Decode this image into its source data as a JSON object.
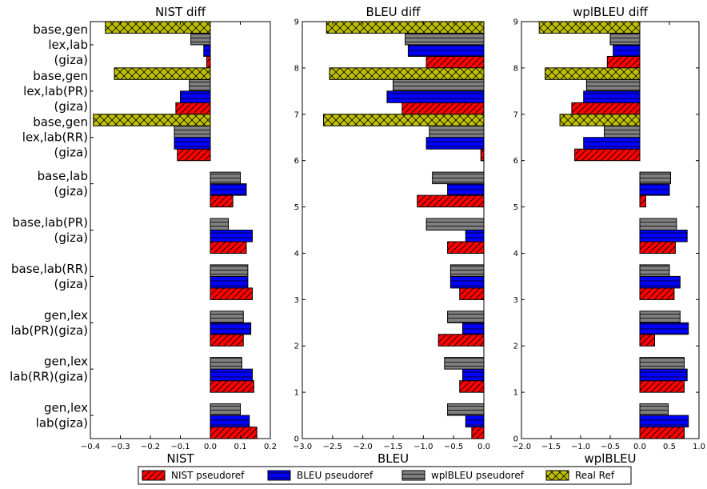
{
  "chart_data": {
    "type": "bar",
    "orientation": "horizontal",
    "row_labels": [
      [
        "gen,lex",
        "lab(giza)"
      ],
      [
        "gen,lex",
        "lab(RR)(giza)"
      ],
      [
        "gen,lex",
        "lab(PR)(giza)"
      ],
      [
        "base,lab(RR)",
        "(giza)"
      ],
      [
        "base,lab(PR)",
        "(giza)"
      ],
      [
        "base,lab",
        "(giza)"
      ],
      [
        "base,gen",
        "lex,lab(RR)",
        "(giza)"
      ],
      [
        "base,gen",
        "lex,lab(PR)",
        "(giza)"
      ],
      [
        "base,gen",
        "lex,lab",
        "(giza)"
      ]
    ],
    "legend": [
      {
        "label": "NIST pseudoref",
        "color": "#ff0000",
        "hatch": "diag"
      },
      {
        "label": "BLEU pseudoref",
        "color": "#0000ff",
        "hatch": "horiz"
      },
      {
        "label": "wplBLEU pseudoref",
        "color": "#808080",
        "hatch": "horiz"
      },
      {
        "label": "Real Ref",
        "color": "#bfbf00",
        "hatch": "cross"
      }
    ],
    "legend_position": "bottom",
    "panels": [
      {
        "title": "NIST diff",
        "xlabel": "NIST",
        "xlim": [
          -0.4,
          0.2
        ],
        "xticks": [
          "−0.4",
          "−0.3",
          "−0.2",
          "−0.1",
          "0.0",
          "0.1",
          "0.2"
        ],
        "ylim": [
          0,
          9
        ],
        "yticks": [],
        "series": [
          {
            "name": "NIST pseudoref",
            "values": [
              0.155,
              0.145,
              0.11,
              0.14,
              0.12,
              0.075,
              -0.11,
              -0.115,
              -0.012
            ]
          },
          {
            "name": "BLEU pseudoref",
            "values": [
              0.13,
              0.14,
              0.135,
              0.125,
              0.14,
              0.12,
              -0.12,
              -0.1,
              -0.022
            ]
          },
          {
            "name": "wplBLEU pseudoref",
            "values": [
              0.1,
              0.105,
              0.11,
              0.125,
              0.06,
              0.1,
              -0.12,
              -0.07,
              -0.065
            ]
          },
          {
            "name": "Real Ref",
            "values": [
              null,
              null,
              null,
              null,
              null,
              null,
              -0.39,
              -0.32,
              -0.35
            ]
          }
        ]
      },
      {
        "title": "BLEU diff",
        "xlabel": "BLEU",
        "xlim": [
          -3.0,
          0.0
        ],
        "xticks": [
          "−3.0",
          "−2.5",
          "−2.0",
          "−1.5",
          "−1.0",
          "−0.5",
          "0.0"
        ],
        "ylim": [
          0,
          9
        ],
        "yticks": [
          "0",
          "1",
          "2",
          "3",
          "4",
          "5",
          "6",
          "7",
          "8",
          "9"
        ],
        "series": [
          {
            "name": "NIST pseudoref",
            "values": [
              -0.2,
              -0.4,
              -0.75,
              -0.4,
              -0.6,
              -1.1,
              -0.05,
              -1.35,
              -0.95
            ]
          },
          {
            "name": "BLEU pseudoref",
            "values": [
              -0.3,
              -0.35,
              -0.35,
              -0.55,
              -0.3,
              -0.6,
              -0.95,
              -1.6,
              -1.25
            ]
          },
          {
            "name": "wplBLEU pseudoref",
            "values": [
              -0.6,
              -0.65,
              -0.6,
              -0.55,
              -0.95,
              -0.85,
              -0.9,
              -1.5,
              -1.3
            ]
          },
          {
            "name": "Real Ref",
            "values": [
              null,
              null,
              null,
              null,
              null,
              null,
              -2.65,
              -2.55,
              -2.6
            ]
          }
        ]
      },
      {
        "title": "wplBLEU diff",
        "xlabel": "wplBLEU",
        "xlim": [
          -2.0,
          1.0
        ],
        "xticks": [
          "−2.0",
          "−1.5",
          "−1.0",
          "−0.5",
          "0.0",
          "0.5",
          "1.0"
        ],
        "ylim": [
          0,
          9
        ],
        "yticks": [
          "0",
          "1",
          "2",
          "3",
          "4",
          "5",
          "6",
          "7",
          "8",
          "9"
        ],
        "series": [
          {
            "name": "NIST pseudoref",
            "values": [
              0.75,
              0.75,
              0.25,
              0.58,
              0.6,
              0.1,
              -1.1,
              -1.15,
              -0.55
            ]
          },
          {
            "name": "BLEU pseudoref",
            "values": [
              0.82,
              0.8,
              0.82,
              0.68,
              0.8,
              0.5,
              -0.95,
              -0.95,
              -0.45
            ]
          },
          {
            "name": "wplBLEU pseudoref",
            "values": [
              0.48,
              0.75,
              0.68,
              0.5,
              0.62,
              0.52,
              -0.6,
              -0.9,
              -0.5
            ]
          },
          {
            "name": "Real Ref",
            "values": [
              null,
              null,
              null,
              null,
              null,
              null,
              -1.35,
              -1.6,
              -1.7
            ]
          }
        ]
      }
    ]
  }
}
